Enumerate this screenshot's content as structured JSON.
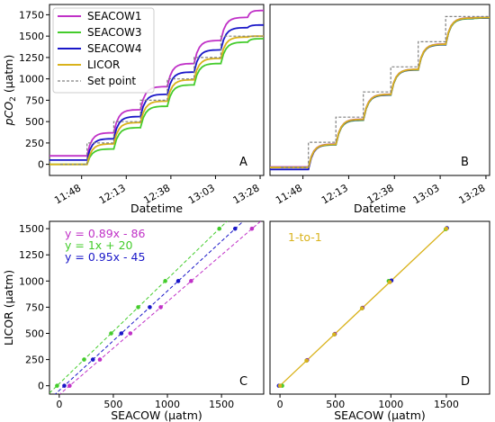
{
  "colors": {
    "seacow1": "#c031c7",
    "seacow3": "#44cc2c",
    "seacow4": "#1a17c8",
    "licor": "#d9b21b",
    "setpoint": "#808080"
  },
  "chart_data": [
    {
      "id": "A",
      "type": "line",
      "panel_label": "A",
      "xlabel": "Datetime",
      "ylabel": "pCO2 (µatm)",
      "ylabel_main": "pCO",
      "ylabel_sub": "2",
      "ylabel_unit": " (µatm)",
      "xlim": [
        0,
        120
      ],
      "ylim": [
        -130,
        1870
      ],
      "x_ticks": [
        {
          "v": 18,
          "label": "11:48"
        },
        {
          "v": 43,
          "label": "12:13"
        },
        {
          "v": 68,
          "label": "12:38"
        },
        {
          "v": 93,
          "label": "13:03"
        },
        {
          "v": 118,
          "label": "13:28"
        }
      ],
      "y_ticks": [
        0,
        250,
        500,
        750,
        1000,
        1250,
        1500,
        1750
      ],
      "steps_x": [
        6,
        21,
        36,
        51,
        66,
        81,
        96,
        111,
        125
      ],
      "series": [
        {
          "key": "seacow1",
          "name": "SEACOW1",
          "levels": [
            100,
            370,
            640,
            910,
            1180,
            1450,
            1720,
            1800
          ],
          "dash": false,
          "width": 1.8
        },
        {
          "key": "seacow3",
          "name": "SEACOW3",
          "levels": [
            0,
            180,
            430,
            680,
            930,
            1180,
            1430,
            1470
          ],
          "dash": false,
          "width": 1.8
        },
        {
          "key": "seacow4",
          "name": "SEACOW4",
          "levels": [
            50,
            300,
            560,
            820,
            1080,
            1340,
            1600,
            1630
          ],
          "dash": false,
          "width": 1.8
        },
        {
          "key": "licor",
          "name": "LICOR",
          "levels": [
            0,
            240,
            490,
            740,
            990,
            1240,
            1490,
            1500
          ],
          "dash": false,
          "width": 1.8
        },
        {
          "key": "setpoint",
          "name": "Set point",
          "levels": [
            0,
            250,
            500,
            750,
            1000,
            1250,
            1500,
            1500
          ],
          "dash": true,
          "width": 1.2
        }
      ]
    },
    {
      "id": "B",
      "type": "line",
      "panel_label": "B",
      "xlabel": "Datetime",
      "xlim": [
        0,
        120
      ],
      "ylim": [
        -80,
        1620
      ],
      "x_ticks": [
        {
          "v": 18,
          "label": "11:48"
        },
        {
          "v": 43,
          "label": "12:13"
        },
        {
          "v": 68,
          "label": "12:38"
        },
        {
          "v": 93,
          "label": "13:03"
        },
        {
          "v": 118,
          "label": "13:28"
        }
      ],
      "steps_x": [
        6,
        21,
        36,
        51,
        66,
        81,
        96,
        111,
        125
      ],
      "series": [
        {
          "key": "seacow1",
          "levels": [
            5,
            232,
            480,
            728,
            976,
            1228,
            1488,
            1490
          ],
          "dash": false,
          "width": 1.8
        },
        {
          "key": "seacow3",
          "levels": [
            0,
            225,
            470,
            720,
            970,
            1220,
            1480,
            1485
          ],
          "dash": false,
          "width": 1.8
        },
        {
          "key": "seacow4",
          "levels": [
            -20,
            228,
            474,
            722,
            972,
            1222,
            1484,
            1488
          ],
          "dash": false,
          "width": 1.8
        },
        {
          "key": "licor",
          "levels": [
            0,
            230,
            478,
            726,
            975,
            1226,
            1486,
            1490
          ],
          "dash": false,
          "width": 1.8
        },
        {
          "key": "setpoint",
          "levels": [
            0,
            250,
            500,
            750,
            1000,
            1250,
            1500,
            1500
          ],
          "dash": true,
          "width": 1.2
        }
      ]
    },
    {
      "id": "C",
      "type": "scatter",
      "panel_label": "C",
      "xlabel": "SEACOW (µatm)",
      "ylabel": "LICOR (µatm)",
      "xlim": [
        -90,
        1890
      ],
      "ylim": [
        -80,
        1570
      ],
      "x_ticks": [
        0,
        500,
        1000,
        1500
      ],
      "y_ticks": [
        0,
        250,
        500,
        750,
        1000,
        1250,
        1500
      ],
      "annotations": [
        {
          "key": "seacow1",
          "text": "y = 0.89x - 86"
        },
        {
          "key": "seacow3",
          "text": "y = 1x + 20"
        },
        {
          "key": "seacow4",
          "text": "y = 0.95x - 45"
        }
      ],
      "series": [
        {
          "key": "seacow1",
          "slope": 0.89,
          "intercept": -86,
          "x": [
            96,
            376,
            657,
            938,
            1219,
            1781
          ],
          "y": [
            0,
            250,
            500,
            750,
            1000,
            1500
          ]
        },
        {
          "key": "seacow3",
          "slope": 1.0,
          "intercept": 20,
          "x": [
            -20,
            230,
            480,
            730,
            980,
            1480
          ],
          "y": [
            0,
            250,
            500,
            750,
            1000,
            1500
          ]
        },
        {
          "key": "seacow4",
          "slope": 0.95,
          "intercept": -45,
          "x": [
            47,
            311,
            574,
            837,
            1100,
            1626
          ],
          "y": [
            0,
            250,
            500,
            750,
            1000,
            1500
          ]
        }
      ]
    },
    {
      "id": "D",
      "type": "scatter",
      "panel_label": "D",
      "xlabel": "SEACOW (µatm)",
      "xlim": [
        -90,
        1890
      ],
      "ylim": [
        -80,
        1570
      ],
      "x_ticks": [
        0,
        500,
        1000,
        1500
      ],
      "annotation": "1-to-1",
      "series": [
        {
          "key": "seacow1",
          "x": [
            0,
            245,
            495,
            745,
            1000,
            1500
          ],
          "y": [
            0,
            245,
            495,
            745,
            1000,
            1500
          ]
        },
        {
          "key": "seacow3",
          "x": [
            20,
            240,
            490,
            740,
            980,
            1495
          ],
          "y": [
            0,
            240,
            490,
            740,
            1000,
            1495
          ]
        },
        {
          "key": "seacow4",
          "x": [
            -10,
            242,
            492,
            742,
            1005,
            1505
          ],
          "y": [
            0,
            242,
            492,
            742,
            1005,
            1505
          ]
        },
        {
          "key": "licor",
          "x": [
            0,
            240,
            490,
            740,
            990,
            1500
          ],
          "y": [
            0,
            240,
            490,
            740,
            990,
            1500
          ]
        }
      ]
    }
  ]
}
